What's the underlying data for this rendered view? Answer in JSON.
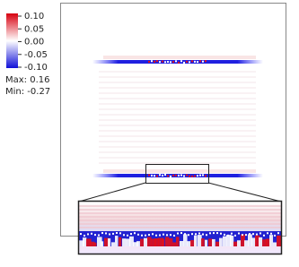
{
  "colorbar": {
    "ticks": [
      "0.10",
      "0.05",
      "0.00",
      "-0.05",
      "-0.10"
    ]
  },
  "stats": {
    "max": "Max:  0.16",
    "min": "Min: -0.27"
  }
}
